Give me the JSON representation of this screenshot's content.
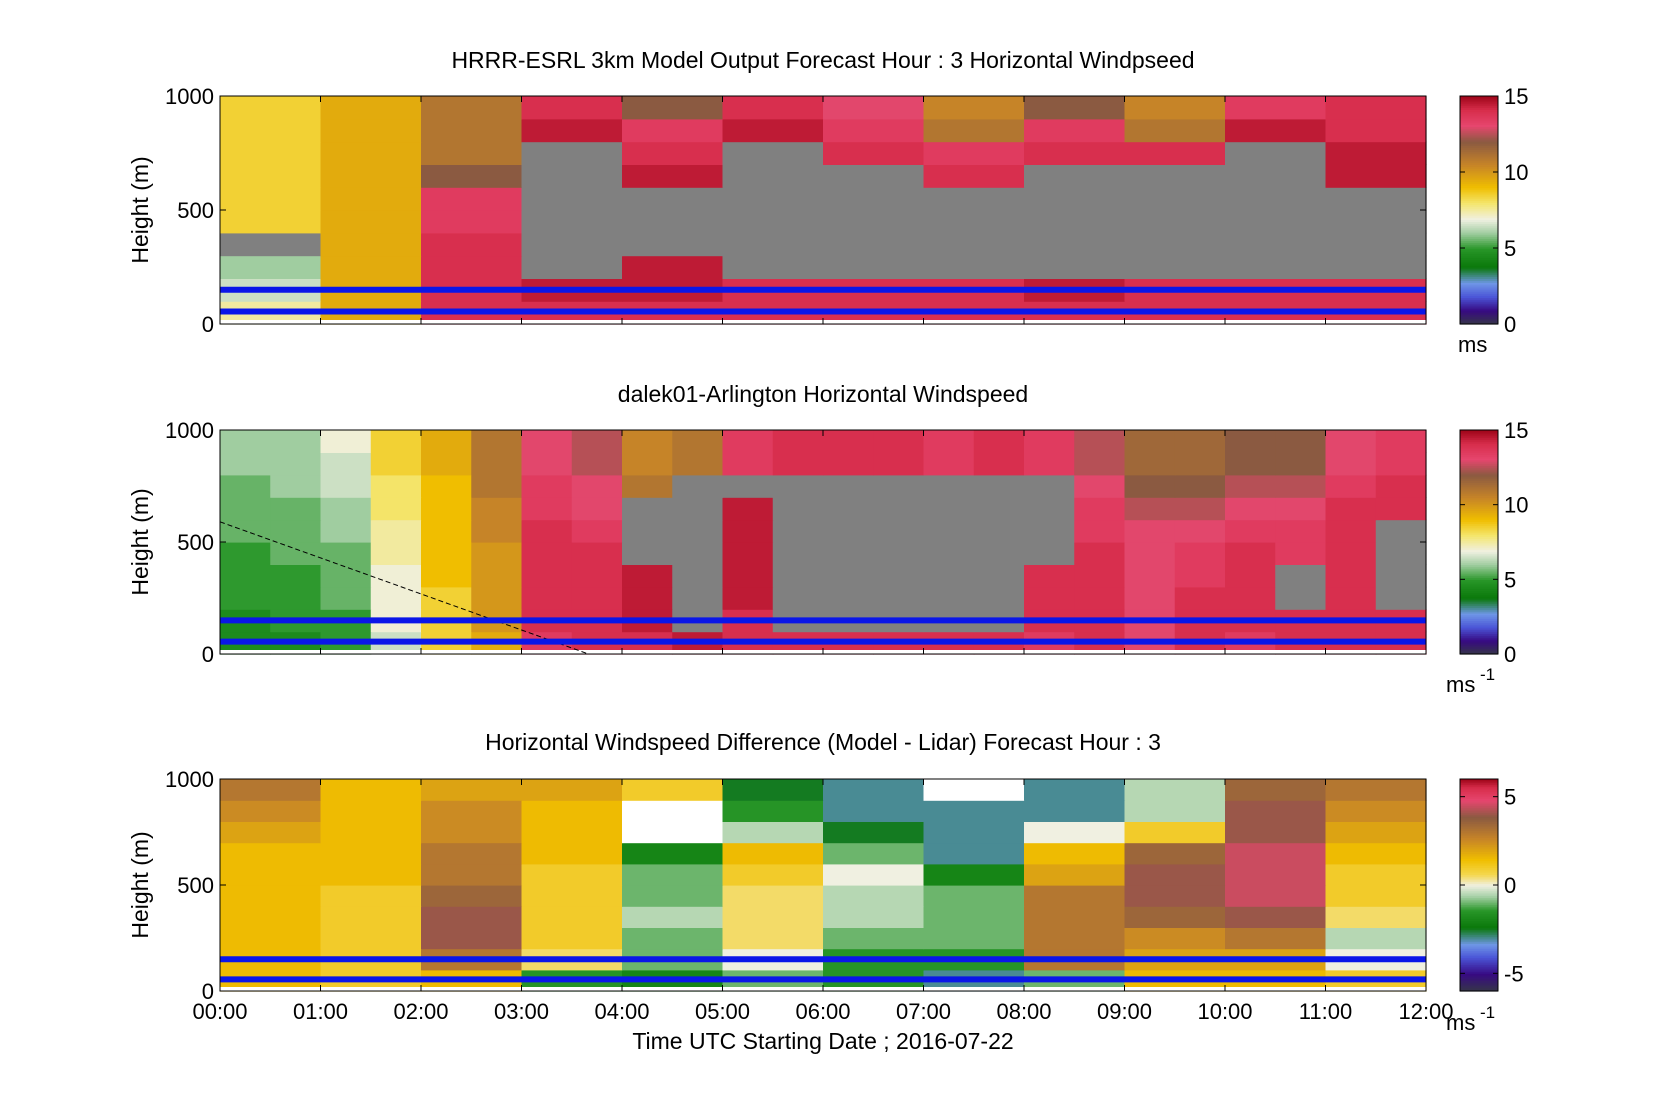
{
  "chart_data": [
    {
      "type": "heatmap",
      "title": "HRRR-ESRL 3km Model Output   Forecast Hour : 3 Horizontal Windpseed",
      "ylabel": "Height (m)",
      "ylim": [
        0,
        1000
      ],
      "yticks": [
        "0",
        "500",
        "1000"
      ],
      "xlim": [
        "00:00",
        "12:00"
      ],
      "xticks": [
        "00:00",
        "01:00",
        "02:00",
        "03:00",
        "04:00",
        "05:00",
        "06:00",
        "07:00",
        "08:00",
        "09:00",
        "10:00",
        "11:00",
        "12:00"
      ],
      "colorbar": {
        "min": 0,
        "max": 15,
        "ticks": [
          "0",
          "5",
          "10",
          "15"
        ],
        "unit": "ms"
      },
      "reference_lines_m": [
        150,
        55
      ],
      "reference_line_color": "#0a16e8",
      "missing_color": "#808080",
      "heights_m": [
        0,
        100,
        200,
        300,
        400,
        500,
        600,
        700,
        800,
        900
      ],
      "hours": [
        "00:00",
        "01:00",
        "02:00",
        "03:00",
        "04:00",
        "05:00",
        "06:00",
        "07:00",
        "08:00",
        "09:00",
        "10:00",
        "11:00"
      ],
      "values_mps": [
        [
          7.5,
          9.5,
          14,
          14,
          14,
          14,
          14,
          14,
          14,
          14,
          14,
          14
        ],
        [
          6.5,
          9.5,
          14,
          14.5,
          14.5,
          14,
          14,
          14,
          14.5,
          14,
          14,
          14
        ],
        [
          6,
          9.5,
          14,
          null,
          14.5,
          null,
          null,
          null,
          null,
          null,
          null,
          null
        ],
        [
          null,
          9.5,
          14,
          null,
          null,
          null,
          null,
          null,
          null,
          null,
          null,
          null
        ],
        [
          8.5,
          9.5,
          13.5,
          null,
          null,
          null,
          null,
          null,
          null,
          null,
          null,
          null
        ],
        [
          8.5,
          9.5,
          13.5,
          null,
          null,
          null,
          null,
          null,
          null,
          null,
          null,
          null
        ],
        [
          8.5,
          9.5,
          12,
          null,
          14.5,
          null,
          null,
          14,
          null,
          null,
          null,
          14.5
        ],
        [
          8.5,
          9.5,
          11,
          null,
          14,
          null,
          14,
          13.5,
          14,
          14,
          null,
          14.5
        ],
        [
          8.5,
          9.5,
          11,
          14.5,
          13.5,
          14.5,
          13.5,
          11,
          13.5,
          11,
          14.5,
          14
        ],
        [
          8.5,
          9.5,
          11,
          14,
          12,
          14,
          13,
          10.5,
          12,
          10.5,
          13.5,
          14
        ]
      ]
    },
    {
      "type": "heatmap",
      "title": "dalek01-Arlington  Horizontal Windspeed",
      "ylabel": "Height (m)",
      "ylim": [
        0,
        1000
      ],
      "yticks": [
        "0",
        "500",
        "1000"
      ],
      "xlim": [
        "00:00",
        "12:00"
      ],
      "xticks": [
        "00:00",
        "01:00",
        "02:00",
        "03:00",
        "04:00",
        "05:00",
        "06:00",
        "07:00",
        "08:00",
        "09:00",
        "10:00",
        "11:00",
        "12:00"
      ],
      "colorbar": {
        "min": 0,
        "max": 15,
        "ticks": [
          "0",
          "5",
          "10",
          "15"
        ],
        "unit": "ms",
        "unit_exponent": "-1"
      },
      "reference_lines_m": [
        150,
        55
      ],
      "reference_line_color": "#0a16e8",
      "missing_color": "#808080",
      "dashed_line": {
        "from": {
          "time": "00:00",
          "height_m": 590
        },
        "to": {
          "time": "03:40",
          "height_m": 0
        }
      },
      "heights_m": [
        0,
        100,
        200,
        300,
        400,
        500,
        600,
        700,
        800,
        900
      ],
      "period_start_hours": [
        0.0,
        0.5,
        1.0,
        1.5,
        2.0,
        2.5,
        3.0,
        3.5,
        4.0,
        4.5,
        5.0,
        5.5,
        6.0,
        6.5,
        7.0,
        7.5,
        8.0,
        8.5,
        9.0,
        9.5,
        10.0,
        10.5,
        11.0,
        11.5
      ],
      "values_mps": [
        [
          4.5,
          4.5,
          5,
          6.5,
          8.5,
          9.5,
          13.5,
          14,
          14,
          14.5,
          14,
          14,
          14,
          14,
          14,
          14,
          13.5,
          14,
          13,
          14,
          13.5,
          14,
          14,
          14
        ],
        [
          4.5,
          5,
          5,
          7,
          8.5,
          10,
          14,
          14,
          14.5,
          null,
          14,
          null,
          null,
          null,
          null,
          null,
          14,
          14,
          13,
          14,
          14,
          14,
          14,
          14
        ],
        [
          5,
          5,
          5.5,
          7,
          8.5,
          10,
          14,
          14,
          14.5,
          null,
          14.5,
          null,
          null,
          null,
          null,
          null,
          14,
          14,
          13,
          14,
          14,
          null,
          14,
          null
        ],
        [
          5,
          5,
          5.5,
          7,
          9,
          10,
          14,
          14,
          14.5,
          null,
          14.5,
          null,
          null,
          null,
          null,
          null,
          14,
          14,
          13,
          13.5,
          14,
          null,
          14,
          null
        ],
        [
          5,
          5.5,
          5.5,
          7.5,
          9,
          10,
          14,
          14,
          null,
          null,
          14.5,
          null,
          null,
          null,
          null,
          null,
          null,
          14,
          13,
          13.5,
          14,
          13.5,
          14,
          null
        ],
        [
          5.5,
          5.5,
          6,
          7.5,
          9,
          10.5,
          14,
          13.5,
          null,
          null,
          14.5,
          null,
          null,
          null,
          null,
          null,
          null,
          13.5,
          13,
          13,
          13.5,
          13.5,
          14,
          null
        ],
        [
          5.5,
          5.5,
          6,
          8,
          9,
          10.5,
          13.5,
          13,
          null,
          null,
          14.5,
          null,
          null,
          null,
          null,
          null,
          null,
          13.5,
          12.5,
          12.5,
          13,
          13,
          14,
          14
        ],
        [
          5.5,
          6,
          6.5,
          8,
          9,
          11,
          13.5,
          13,
          11,
          null,
          null,
          null,
          null,
          null,
          null,
          null,
          null,
          13,
          12,
          12,
          12.5,
          12.5,
          13.5,
          14
        ],
        [
          6,
          6,
          6.5,
          8.5,
          9.5,
          11,
          13,
          12.5,
          10.5,
          11,
          13.5,
          14,
          14,
          14,
          13.5,
          14,
          13.5,
          12.5,
          11.5,
          11.5,
          12,
          12,
          13,
          13.5
        ],
        [
          6,
          6,
          7,
          8.5,
          9.5,
          11,
          13,
          12.5,
          10.5,
          11,
          13.5,
          14,
          14,
          14,
          13.5,
          14,
          13.5,
          12.5,
          11.5,
          11.5,
          12,
          12,
          13,
          13.5
        ]
      ]
    },
    {
      "type": "heatmap",
      "title": "Horizontal Windspeed Difference (Model - Lidar) Forecast Hour : 3",
      "ylabel": "Height (m)",
      "xlabel": "Time UTC  Starting Date ; 2016-07-22",
      "ylim": [
        0,
        1000
      ],
      "yticks": [
        "0",
        "500",
        "1000"
      ],
      "xlim": [
        "00:00",
        "12:00"
      ],
      "xticks": [
        "00:00",
        "01:00",
        "02:00",
        "03:00",
        "04:00",
        "05:00",
        "06:00",
        "07:00",
        "08:00",
        "09:00",
        "10:00",
        "11:00",
        "12:00"
      ],
      "colorbar": {
        "min": -6,
        "max": 6,
        "ticks": [
          "-5",
          "0",
          "5"
        ],
        "unit": "ms",
        "unit_exponent": "-1"
      },
      "reference_lines_m": [
        150,
        55
      ],
      "reference_line_color": "#0a16e8",
      "missing_color": "#ffffff",
      "heights_m": [
        0,
        100,
        200,
        300,
        400,
        500,
        600,
        700,
        800,
        900
      ],
      "hours": [
        "00:00",
        "01:00",
        "02:00",
        "03:00",
        "04:00",
        "05:00",
        "06:00",
        "07:00",
        "08:00",
        "09:00",
        "10:00",
        "11:00"
      ],
      "values_mps": [
        [
          1.5,
          1,
          1.5,
          -1.5,
          -2,
          -1,
          -1.5,
          -3,
          -1,
          1.5,
          1.5,
          1
        ],
        [
          1.5,
          1,
          3,
          0.5,
          -1,
          0,
          -1.5,
          -1.5,
          3,
          2,
          2,
          0
        ],
        [
          1.5,
          1,
          4,
          1,
          -1,
          0.5,
          -1,
          -1,
          3,
          2.5,
          3,
          -0.5
        ],
        [
          1.5,
          1,
          4,
          1,
          -0.5,
          0.5,
          -0.5,
          -1,
          3,
          3.5,
          4,
          0.5
        ],
        [
          1.5,
          1,
          3.5,
          1,
          -1,
          0.5,
          -0.5,
          -1,
          3,
          4,
          4.5,
          1
        ],
        [
          1.5,
          1.5,
          3,
          1,
          -1,
          1,
          0,
          -2,
          2,
          4,
          4.5,
          1
        ],
        [
          1.5,
          1.5,
          3,
          1.5,
          -2,
          1.5,
          -1,
          -3,
          1.5,
          3.5,
          4.5,
          1.5
        ],
        [
          2,
          1.5,
          2.5,
          1.5,
          null,
          -0.5,
          -2.5,
          -3,
          0,
          1,
          4,
          2
        ],
        [
          2.5,
          1.5,
          2.5,
          1.5,
          null,
          -1.5,
          -3,
          -3,
          -3,
          -0.5,
          4,
          2.5
        ],
        [
          3,
          1.5,
          2,
          2,
          1,
          -2.5,
          -3,
          null,
          -3,
          -0.5,
          3.5,
          3
        ]
      ]
    }
  ]
}
